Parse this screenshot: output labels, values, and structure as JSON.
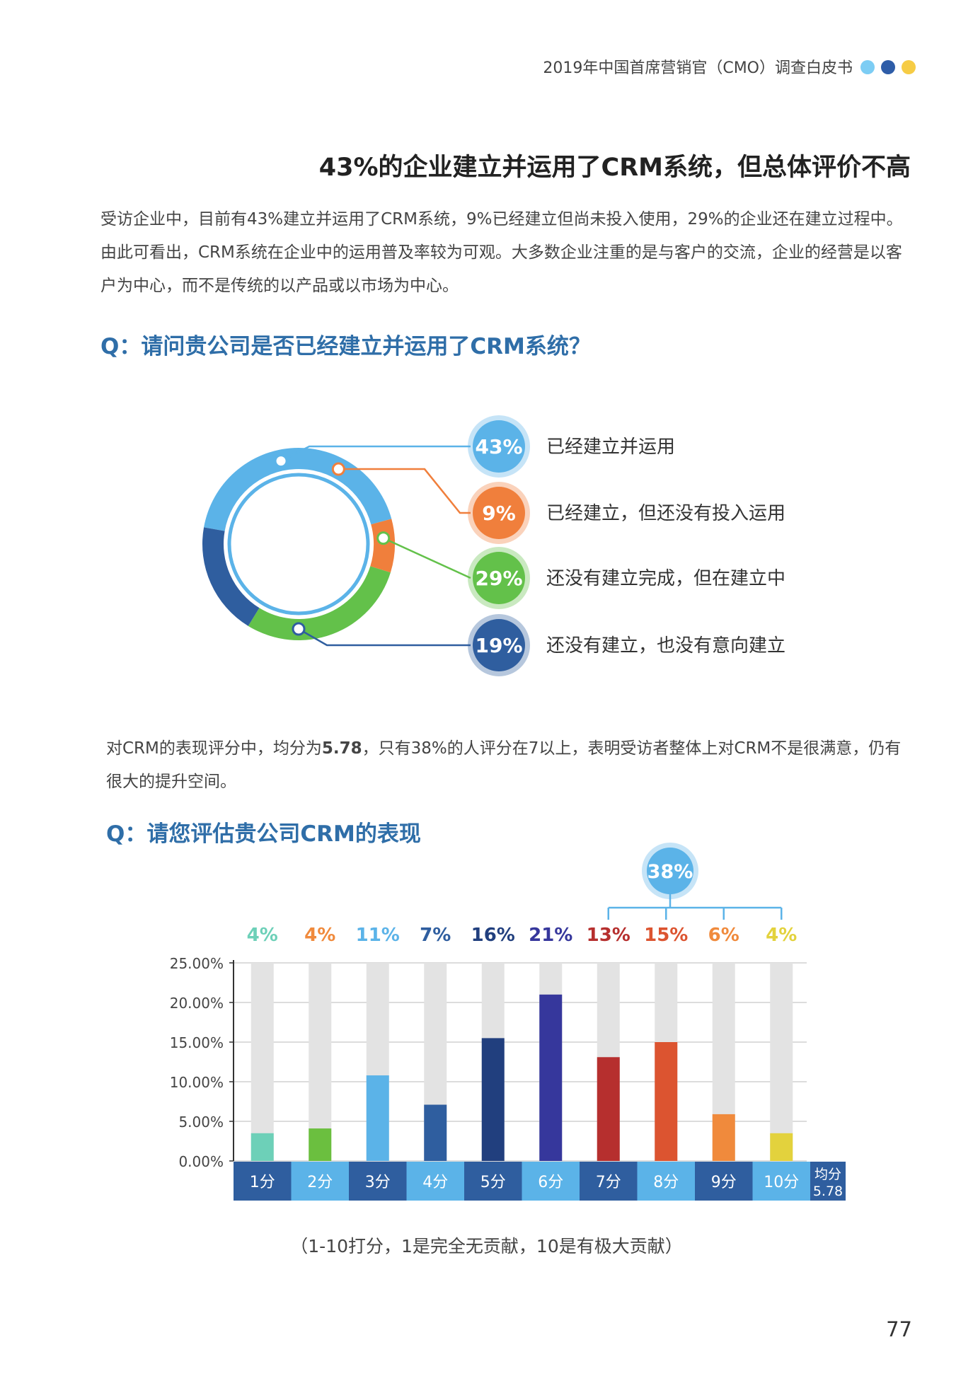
{
  "header": {
    "title": "2019年中国首席营销官（CMO）调查白皮书",
    "dots": [
      "#7dcdf4",
      "#2e5da8",
      "#f6cc45"
    ]
  },
  "section": {
    "title": "43%的企业建立并运用了CRM系统，但总体评价不高",
    "intro": "受访企业中，目前有43%建立并运用了CRM系统，9%已经建立但尚未投入使用，29%的企业还在建立过程中。由此可看出，CRM系统在企业中的运用普及率较为可观。大多数企业注重的是与客户的交流，企业的经营是以客户为中心，而不是传统的以产品或以市场为中心。"
  },
  "question1": {
    "text": "Q：请问贵公司是否已经建立并运用了CRM系统？"
  },
  "paragraph2": {
    "before": "对CRM的表现评分中，均分为",
    "avg": "5.78",
    "after": "，只有38%的人评分在7以上，表明受访者整体上对CRM不是很满意，仍有很大的提升空间。"
  },
  "question2": {
    "text": "Q：请您评估贵公司CRM的表现"
  },
  "chart_data": [
    {
      "type": "pie",
      "variant": "donut",
      "categories": [
        "已经建立并运用",
        "已经建立，但还没有投入运用",
        "还没有建立完成，但在建立中",
        "还没有建立，也没有意向建立"
      ],
      "values": [
        43,
        9,
        29,
        19
      ],
      "labels": [
        "43%",
        "9%",
        "29%",
        "19%"
      ],
      "colors": [
        "#5bb3e8",
        "#f07f3c",
        "#63c14a",
        "#2f5e9f"
      ]
    },
    {
      "type": "bar",
      "categories": [
        "1分",
        "2分",
        "3分",
        "4分",
        "5分",
        "6分",
        "7分",
        "8分",
        "9分",
        "10分"
      ],
      "values": [
        3.5,
        4.1,
        10.8,
        7.1,
        15.5,
        21.0,
        13.1,
        15.0,
        5.9,
        3.5
      ],
      "top_labels": [
        "4%",
        "4%",
        "11%",
        "7%",
        "16%",
        "21%",
        "13%",
        "15%",
        "6%",
        "4%"
      ],
      "colors": [
        "#6dd0b8",
        "#6bbf3f",
        "#5bb3e8",
        "#2f5e9f",
        "#213f7e",
        "#36379c",
        "#b62f2e",
        "#dc5430",
        "#f08a3c",
        "#e3d23d"
      ],
      "label_colors": [
        "#6dd0b8",
        "#f08a3c",
        "#5bb3e8",
        "#2f5e9f",
        "#213f7e",
        "#36379c",
        "#b62f2e",
        "#dc5430",
        "#f08a3c",
        "#e3d23d"
      ],
      "yticks": [
        "0.00%",
        "5.00%",
        "10.00%",
        "15.00%",
        "20.00%",
        "25.00%"
      ],
      "ylim": [
        0,
        25
      ],
      "grouped_label": "38%",
      "average_label": "均分",
      "average_value": "5.78",
      "note": "（1-10打分，1是完全无贡献，10是有极大贡献）"
    }
  ],
  "page_number": "77"
}
